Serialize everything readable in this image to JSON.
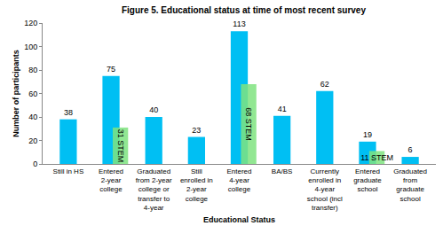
{
  "chart_data": {
    "type": "bar",
    "title": "Figure 5. Educational status at time of most recent survey",
    "x_label": "Educational Status",
    "y_label": "Number of participants",
    "categories": [
      "Still in HS",
      "Entered 2-year college",
      "Graduated from 2-year college or transfer to 4-year",
      "Still enrolled in 2-year college",
      "Entered 4-year college",
      "BA/BS",
      "Currently enrolled in 4-year school (incl transfer)",
      "Entered graduate school",
      "Graduated from graduate school"
    ],
    "series": [
      {
        "color": "#00BFF3",
        "values": [
          38,
          75,
          40,
          23,
          113,
          41,
          62,
          19,
          6
        ],
        "data_labels": true
      },
      {
        "color": "#7FE37F",
        "values": [
          null,
          31,
          null,
          null,
          68,
          null,
          null,
          11,
          null
        ],
        "value_labels": [
          null,
          "31 STEM",
          null,
          null,
          "68 STEM",
          null,
          null,
          "11 STEM",
          null
        ],
        "data_labels": true
      }
    ],
    "ylim": [
      0,
      120
    ],
    "yticks": [
      0,
      20,
      40,
      60,
      80,
      100,
      120
    ],
    "grid": false
  }
}
